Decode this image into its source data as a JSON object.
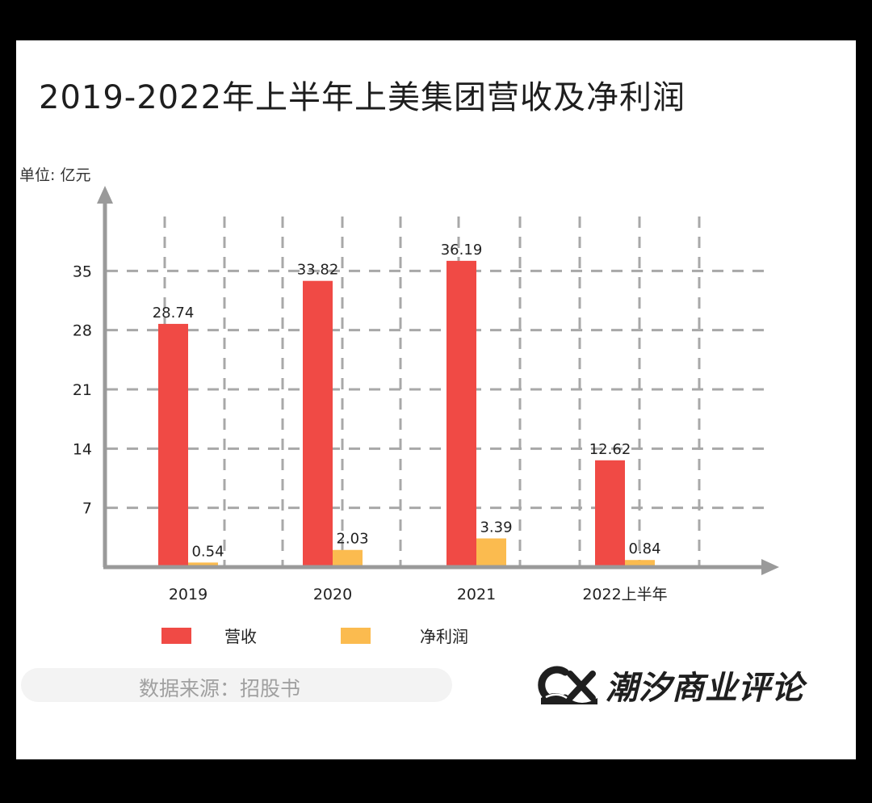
{
  "chart_data": {
    "type": "bar",
    "title": "2019-2022年上半年上美集团营收及净利润",
    "unit_label": "单位:  亿元",
    "categories": [
      "2019",
      "2020",
      "2021",
      "2022上半年"
    ],
    "series": [
      {
        "name": "营收",
        "color": "#f04a45",
        "values": [
          28.74,
          33.82,
          36.19,
          12.62
        ]
      },
      {
        "name": "净利润",
        "color": "#fbbb4f",
        "values": [
          0.54,
          2.03,
          3.39,
          0.84
        ]
      }
    ],
    "data_labels": [
      [
        "28.74",
        "33.82",
        "36.19",
        "12.62"
      ],
      [
        "0.54",
        "2.03",
        "3.39",
        "0.84"
      ]
    ],
    "yticks": [
      7,
      14,
      21,
      28,
      35
    ],
    "ylim": [
      0,
      42
    ],
    "grid": true,
    "legend_position": "bottom-left",
    "source": "数据来源：招股书",
    "brand": "潮汐商业评论",
    "brand_logo_icon": "cx-wave-logo-icon"
  }
}
